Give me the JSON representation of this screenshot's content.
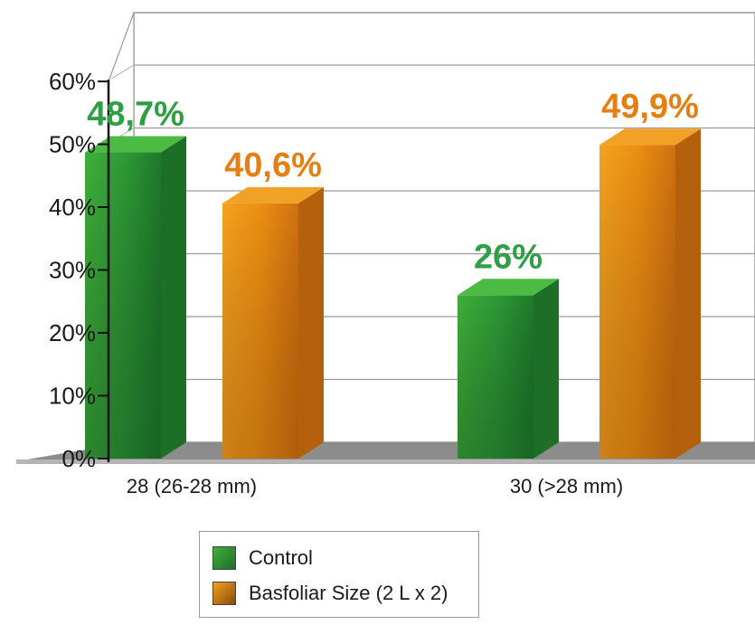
{
  "chart_data": {
    "type": "bar",
    "categories": [
      "28 (26-28 mm)",
      "30 (>28 mm)"
    ],
    "series": [
      {
        "name": "Control",
        "values": [
          48.7,
          26
        ],
        "labels": [
          "48,7%",
          "26%"
        ],
        "color": "#2e9a3c",
        "label_color": "#2ea043"
      },
      {
        "name": "Basfoliar Size (2 L x 2)",
        "values": [
          40.6,
          49.9
        ],
        "labels": [
          "40,6%",
          "49,9%"
        ],
        "color": "#e98a10",
        "label_color": "#e57f12"
      }
    ],
    "ylim": [
      0,
      60
    ],
    "yticks": [
      "0%",
      "10%",
      "20%",
      "30%",
      "40%",
      "50%",
      "60%"
    ],
    "grid": true,
    "legend_position": "bottom-center",
    "style": "3d-bar"
  }
}
